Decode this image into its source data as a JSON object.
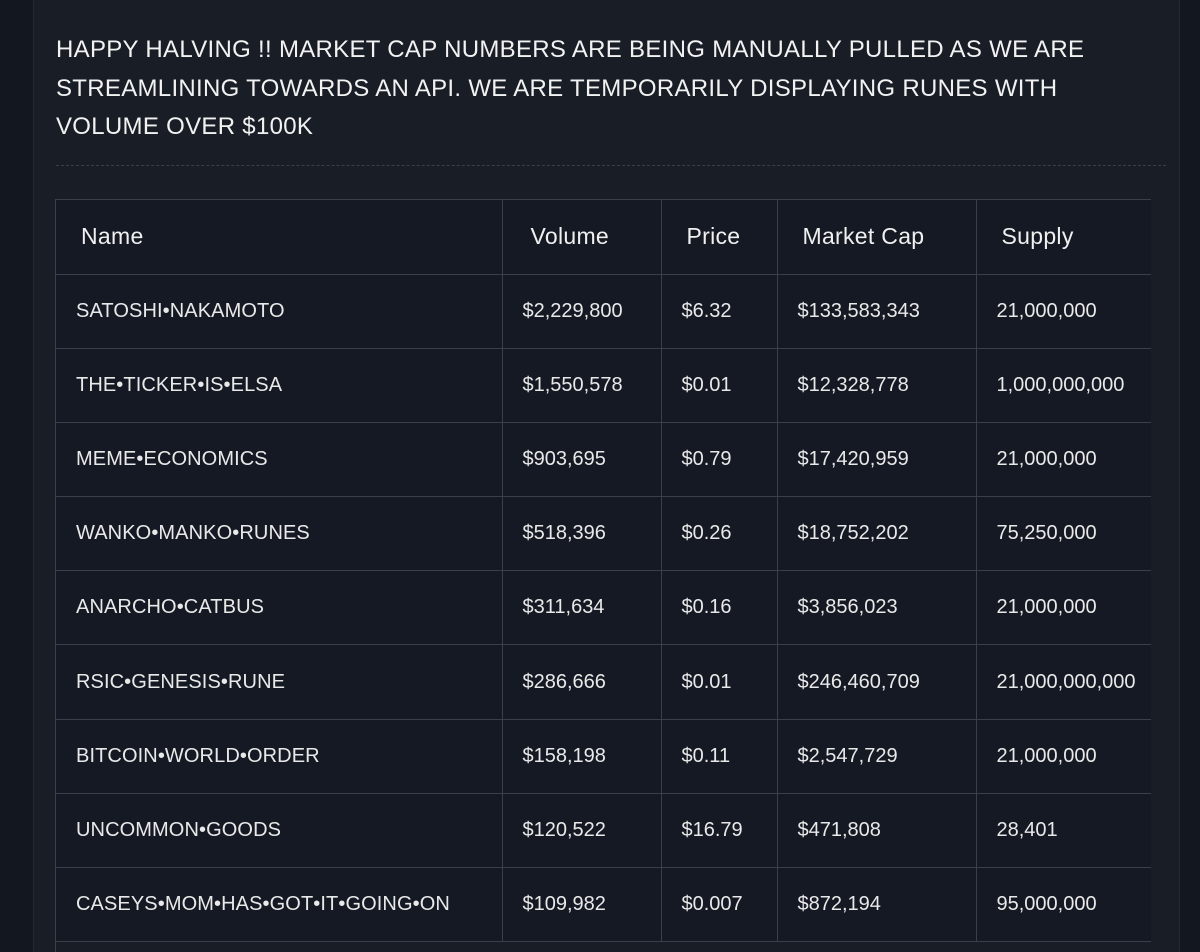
{
  "announcement": {
    "line1": "HAPPY HALVING !! MARKET CAP NUMBERS ARE BEING MANUALLY PULLED AS WE ARE",
    "line2": "STREAMLINING TOWARDS AN API. WE ARE TEMPORARILY DISPLAYING RUNES WITH",
    "line3": "VOLUME OVER $100K"
  },
  "table": {
    "headers": {
      "name": "Name",
      "volume": "Volume",
      "price": "Price",
      "market_cap": "Market Cap",
      "supply": "Supply"
    },
    "rows": [
      {
        "name": "SATOSHI•NAKAMOTO",
        "volume": "$2,229,800",
        "price": "$6.32",
        "market_cap": "$133,583,343",
        "supply": "21,000,000"
      },
      {
        "name": "THE•TICKER•IS•ELSA",
        "volume": "$1,550,578",
        "price": "$0.01",
        "market_cap": "$12,328,778",
        "supply": "1,000,000,000"
      },
      {
        "name": "MEME•ECONOMICS",
        "volume": "$903,695",
        "price": "$0.79",
        "market_cap": "$17,420,959",
        "supply": "21,000,000"
      },
      {
        "name": "WANKO•MANKO•RUNES",
        "volume": "$518,396",
        "price": "$0.26",
        "market_cap": "$18,752,202",
        "supply": "75,250,000"
      },
      {
        "name": "ANARCHO•CATBUS",
        "volume": "$311,634",
        "price": "$0.16",
        "market_cap": "$3,856,023",
        "supply": "21,000,000"
      },
      {
        "name": "RSIC•GENESIS•RUNE",
        "volume": "$286,666",
        "price": "$0.01",
        "market_cap": "$246,460,709",
        "supply": "21,000,000,000"
      },
      {
        "name": "BITCOIN•WORLD•ORDER",
        "volume": "$158,198",
        "price": "$0.11",
        "market_cap": "$2,547,729",
        "supply": "21,000,000"
      },
      {
        "name": "UNCOMMON•GOODS",
        "volume": "$120,522",
        "price": "$16.79",
        "market_cap": "$471,808",
        "supply": "28,401"
      },
      {
        "name": "CASEYS•MOM•HAS•GOT•IT•GOING•ON",
        "volume": "$109,982",
        "price": "$0.007",
        "market_cap": "$872,194",
        "supply": "95,000,000"
      }
    ]
  }
}
